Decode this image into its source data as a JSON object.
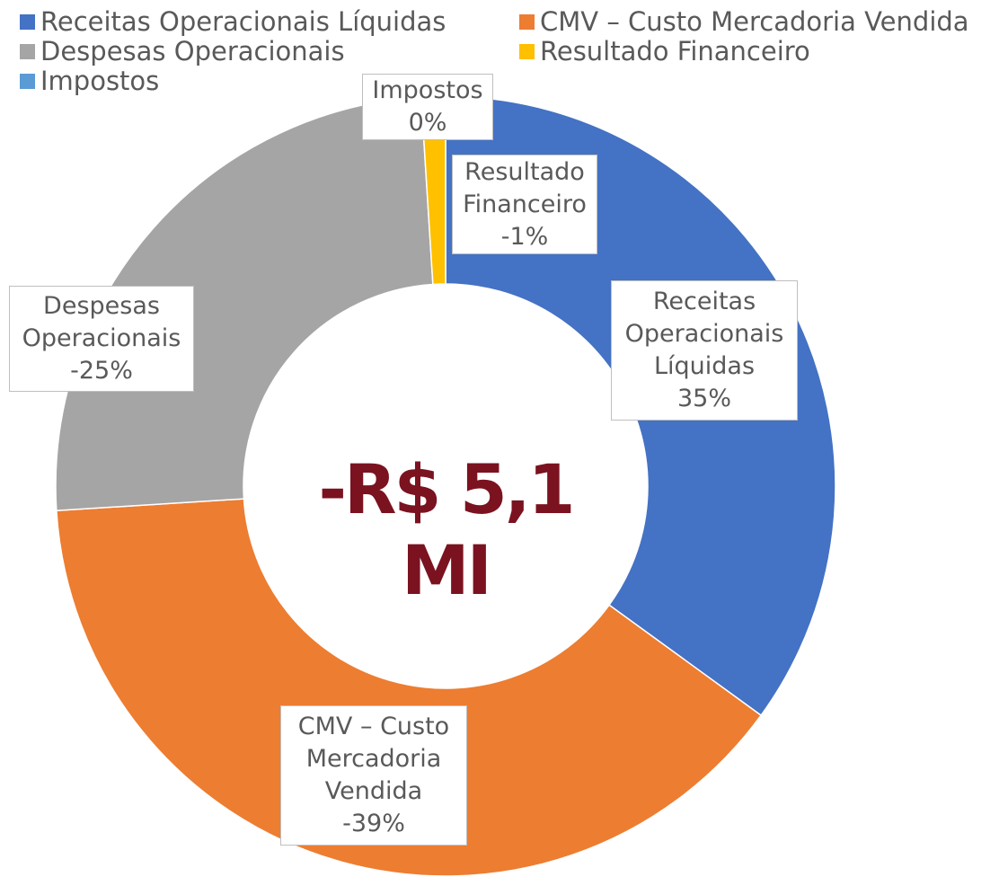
{
  "chart_data": {
    "type": "donut",
    "categories": [
      "Receitas Operacionais Líquidas",
      "CMV – Custo Mercadoria Vendida",
      "Despesas Operacionais",
      "Resultado Financeiro",
      "Impostos"
    ],
    "values": [
      35,
      -39,
      -25,
      -1,
      0
    ],
    "value_labels": [
      "35%",
      "-39%",
      "-25%",
      "-1%",
      "0%"
    ],
    "colors": [
      "#4472c4",
      "#ed7d31",
      "#a5a5a5",
      "#ffc000",
      "#5b9bd5"
    ],
    "center_label": "-R$ 5,1 MI",
    "legend": "top"
  }
}
